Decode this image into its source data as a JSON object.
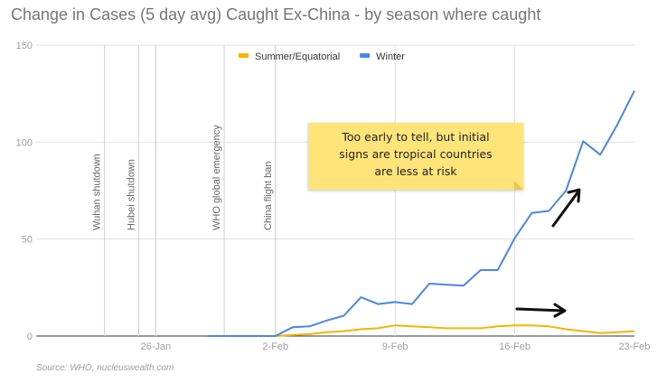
{
  "chart_data": {
    "type": "line",
    "title": "Change in Cases (5 day avg) Caught Ex-China - by season where caught",
    "xlabel": "",
    "ylabel": "",
    "ylim": [
      0,
      150
    ],
    "yticks": [
      "0",
      "50",
      "100",
      "150"
    ],
    "x_tick_labels": [
      "26-Jan",
      "2-Feb",
      "9-Feb",
      "16-Feb",
      "23-Feb"
    ],
    "x": [
      "2020-01-29",
      "2020-01-30",
      "2020-01-31",
      "2020-02-01",
      "2020-02-02",
      "2020-02-03",
      "2020-02-04",
      "2020-02-05",
      "2020-02-06",
      "2020-02-07",
      "2020-02-08",
      "2020-02-09",
      "2020-02-10",
      "2020-02-11",
      "2020-02-12",
      "2020-02-13",
      "2020-02-14",
      "2020-02-15",
      "2020-02-16",
      "2020-02-17",
      "2020-02-18",
      "2020-02-19",
      "2020-02-20",
      "2020-02-21",
      "2020-02-22",
      "2020-02-23"
    ],
    "series": [
      {
        "name": "Summer/Equatorial",
        "color": "#f4b400",
        "values": [
          0,
          0,
          0,
          0,
          0,
          0.5,
          1,
          2,
          2.5,
          3.5,
          4,
          5.5,
          5,
          4.5,
          4,
          4,
          4,
          5,
          5.5,
          5.5,
          5,
          3.5,
          2.5,
          1.5,
          2,
          2.5
        ]
      },
      {
        "name": "Winter",
        "color": "#4a86e8",
        "values": [
          0,
          0,
          0,
          0,
          0,
          4.5,
          5,
          8,
          10.5,
          20,
          16.5,
          17.5,
          16.5,
          27,
          26.5,
          26,
          34,
          34,
          50.5,
          63.5,
          64.5,
          75,
          100.5,
          93.5,
          109,
          126.5
        ]
      }
    ],
    "grid": true,
    "legend": "top-center",
    "annotations": {
      "events": [
        {
          "date": "2020-01-23",
          "label": "Wuhan shutdown"
        },
        {
          "date": "2020-01-25",
          "label": "Hubei shutdown"
        },
        {
          "date": "2020-01-26",
          "label": ""
        },
        {
          "date": "2020-01-30",
          "label": "WHO global emergency"
        },
        {
          "date": "2020-02-02",
          "label": "China flight ban"
        }
      ],
      "note": [
        "Too early to tell, but initial",
        "signs are tropical countries",
        "are less at risk"
      ]
    }
  },
  "source": "Source: WHO, nucleuswealth.com"
}
